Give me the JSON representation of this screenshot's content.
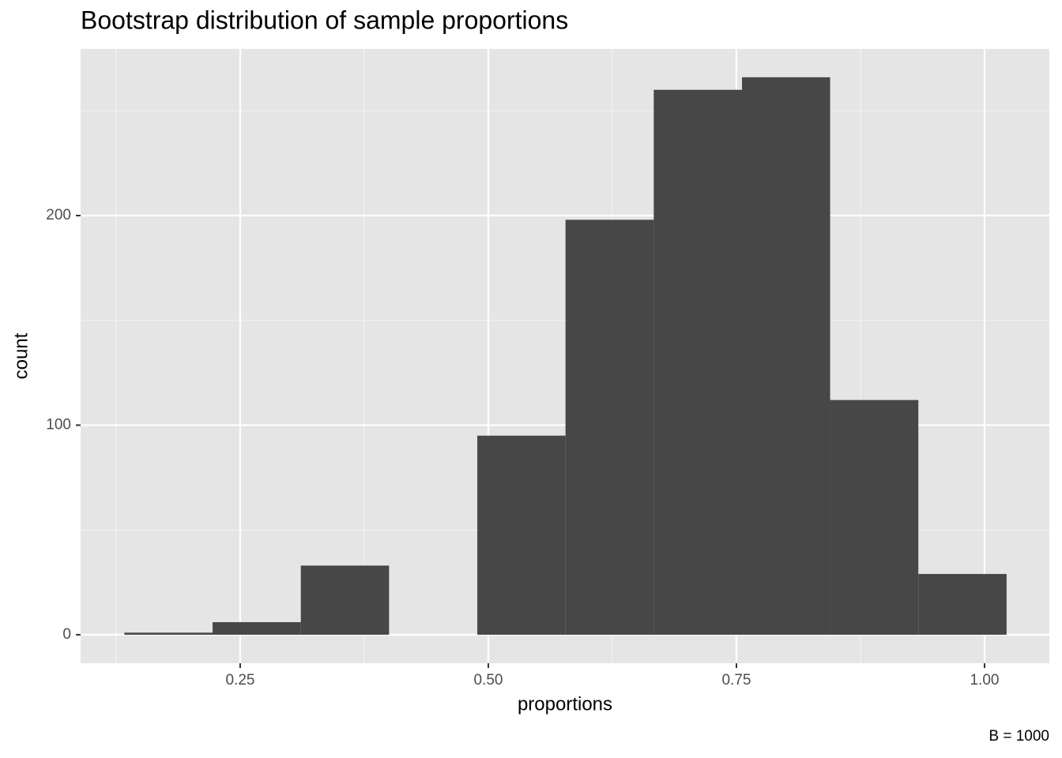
{
  "chart_data": {
    "type": "histogram",
    "title": "Bootstrap distribution of sample proportions",
    "x_label": "proportions",
    "y_label": "count",
    "caption": "B = 1000",
    "bins": [
      0.1333,
      0.2222,
      0.3111,
      0.4,
      0.4889,
      0.5778,
      0.6667,
      0.7556,
      0.8444,
      0.9333,
      1.0222
    ],
    "counts": [
      1,
      6,
      33,
      0,
      95,
      198,
      260,
      266,
      112,
      29
    ],
    "color": "#474747",
    "xlim": [
      0.0892,
      1.0653
    ],
    "xticks": [
      0.25,
      {
        "value": 0.5,
        "label": "0.50"
      },
      0.75,
      {
        "value": 1.0,
        "label": "1.00"
      }
    ],
    "ylim": [
      -13.6,
      279.5
    ],
    "yticks": [
      0,
      100,
      200
    ],
    "grid": true
  }
}
